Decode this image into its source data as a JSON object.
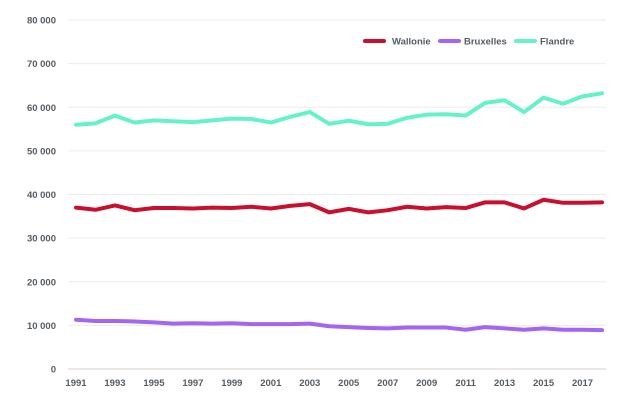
{
  "chart_data": {
    "type": "line",
    "title": "",
    "xlabel": "",
    "ylabel": "",
    "x": [
      1991,
      1992,
      1993,
      1994,
      1995,
      1996,
      1997,
      1998,
      1999,
      2000,
      2001,
      2002,
      2003,
      2004,
      2005,
      2006,
      2007,
      2008,
      2009,
      2010,
      2011,
      2012,
      2013,
      2014,
      2015,
      2016,
      2017,
      2018
    ],
    "x_tick_labels": [
      "1991",
      "1993",
      "1995",
      "1997",
      "1999",
      "2001",
      "2003",
      "2005",
      "2007",
      "2009",
      "2011",
      "2013",
      "2015",
      "2017"
    ],
    "y_tick_labels": [
      "0",
      "10 000",
      "20 000",
      "30 000",
      "40 000",
      "50 000",
      "60 000",
      "70 000",
      "80 000"
    ],
    "ylim": [
      0,
      80000
    ],
    "grid": true,
    "legend_position": "top-right",
    "series": [
      {
        "name": "Wallonie",
        "color": "#c8102e",
        "values": [
          37000,
          36500,
          37500,
          36400,
          36900,
          36900,
          36800,
          37000,
          36900,
          37200,
          36800,
          37400,
          37800,
          35900,
          36700,
          35900,
          36400,
          37200,
          36800,
          37100,
          36900,
          38200,
          38200,
          36800,
          38800,
          38100,
          38100,
          38200
        ]
      },
      {
        "name": "Bruxelles",
        "color": "#a266f0",
        "values": [
          11300,
          11000,
          11000,
          10900,
          10700,
          10400,
          10500,
          10400,
          10500,
          10300,
          10300,
          10300,
          10400,
          9800,
          9600,
          9400,
          9300,
          9500,
          9500,
          9500,
          9000,
          9600,
          9300,
          9000,
          9300,
          9000,
          9000,
          8900
        ]
      },
      {
        "name": "Flandre",
        "color": "#66f2c8",
        "values": [
          56000,
          56300,
          58100,
          56500,
          57000,
          56800,
          56600,
          57000,
          57400,
          57300,
          56500,
          57800,
          58900,
          56200,
          56900,
          56100,
          56200,
          57600,
          58300,
          58400,
          58100,
          61000,
          61600,
          58900,
          62200,
          60800,
          62500,
          63200
        ]
      }
    ]
  }
}
